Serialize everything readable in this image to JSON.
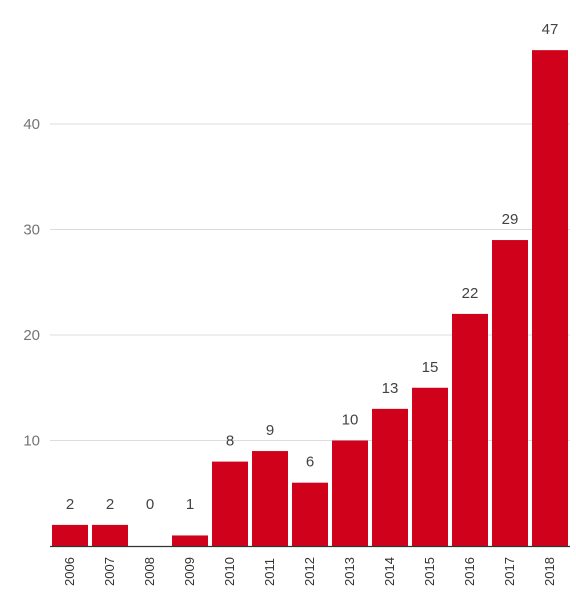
{
  "chart_data": {
    "type": "bar",
    "title": "",
    "xlabel": "",
    "ylabel": "",
    "categories": [
      "2006",
      "2007",
      "2008",
      "2009",
      "2010",
      "2011",
      "2012",
      "2013",
      "2014",
      "2015",
      "2016",
      "2017",
      "2018"
    ],
    "values": [
      2,
      2,
      0,
      1,
      8,
      9,
      6,
      10,
      13,
      15,
      22,
      29,
      47
    ],
    "ylim": [
      0,
      48
    ],
    "yticks": [
      "10",
      "20",
      "30",
      "40"
    ],
    "ytick_values": [
      10,
      20,
      30,
      40
    ],
    "bar_color": "#d0021b",
    "grid": true,
    "data_labels": true,
    "legend": "none"
  }
}
